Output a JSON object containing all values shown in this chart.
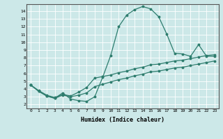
{
  "xlabel": "Humidex (Indice chaleur)",
  "bg_color": "#cce8e8",
  "line_color": "#2e7d6e",
  "xlim": [
    -0.5,
    23.5
  ],
  "ylim": [
    1.5,
    14.9
  ],
  "xticks": [
    0,
    1,
    2,
    3,
    4,
    5,
    6,
    7,
    8,
    9,
    10,
    11,
    12,
    13,
    14,
    15,
    16,
    17,
    18,
    19,
    20,
    21,
    22,
    23
  ],
  "yticks": [
    2,
    3,
    4,
    5,
    6,
    7,
    8,
    9,
    10,
    11,
    12,
    13,
    14
  ],
  "line1_x": [
    0,
    1,
    2,
    3,
    4,
    5,
    6,
    7,
    8,
    9,
    10,
    11,
    12,
    13,
    14,
    15,
    16,
    17,
    18,
    19,
    20,
    21,
    22,
    23
  ],
  "line1_y": [
    4.5,
    3.7,
    3.1,
    2.8,
    3.5,
    2.7,
    2.5,
    2.4,
    3.0,
    5.5,
    8.3,
    12.0,
    13.5,
    14.2,
    14.6,
    14.3,
    13.3,
    11.1,
    8.6,
    8.5,
    8.2,
    9.7,
    8.2,
    8.2
  ],
  "line2_x": [
    0,
    1,
    2,
    3,
    4,
    5,
    6,
    7,
    8,
    9,
    10,
    11,
    12,
    13,
    14,
    15,
    16,
    17,
    18,
    19,
    20,
    21,
    22,
    23
  ],
  "line2_y": [
    4.5,
    3.8,
    3.2,
    2.9,
    3.3,
    3.1,
    3.6,
    4.2,
    5.4,
    5.6,
    5.8,
    6.1,
    6.3,
    6.6,
    6.8,
    7.1,
    7.2,
    7.4,
    7.6,
    7.7,
    7.9,
    8.1,
    8.3,
    8.4
  ],
  "line3_x": [
    0,
    1,
    2,
    3,
    4,
    5,
    6,
    7,
    8,
    9,
    10,
    11,
    12,
    13,
    14,
    15,
    16,
    17,
    18,
    19,
    20,
    21,
    22,
    23
  ],
  "line3_y": [
    4.5,
    3.7,
    3.1,
    2.8,
    3.2,
    3.0,
    3.2,
    3.5,
    4.3,
    4.6,
    4.9,
    5.2,
    5.4,
    5.7,
    5.9,
    6.2,
    6.3,
    6.5,
    6.7,
    6.8,
    7.0,
    7.2,
    7.4,
    7.6
  ]
}
